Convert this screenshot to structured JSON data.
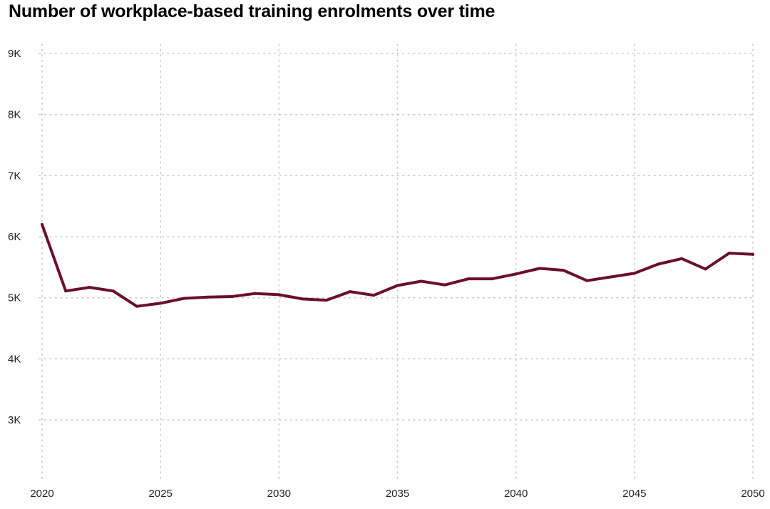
{
  "chart_data": {
    "type": "line",
    "title": "Number of workplace-based training enrolments over time",
    "xlabel": "",
    "ylabel": "",
    "x": [
      2020,
      2021,
      2022,
      2023,
      2024,
      2025,
      2026,
      2027,
      2028,
      2029,
      2030,
      2031,
      2032,
      2033,
      2034,
      2035,
      2036,
      2037,
      2038,
      2039,
      2040,
      2041,
      2042,
      2043,
      2044,
      2045,
      2046,
      2047,
      2048,
      2049,
      2050
    ],
    "series": [
      {
        "values": [
          6200,
          5110,
          5170,
          5110,
          4860,
          4910,
          4990,
          5010,
          5020,
          5070,
          5050,
          4980,
          4960,
          5100,
          5040,
          5200,
          5270,
          5210,
          5310,
          5310,
          5390,
          5480,
          5450,
          5280,
          5340,
          5400,
          5550,
          5640,
          5470,
          5730,
          5710
        ],
        "color": "#6b0f2a"
      }
    ],
    "xlim": [
      2020,
      2050
    ],
    "ylim": [
      2000,
      9300
    ],
    "x_ticks": [
      2020,
      2025,
      2030,
      2035,
      2040,
      2045,
      2050
    ],
    "x_tick_labels": [
      "2020",
      "2025",
      "2030",
      "2035",
      "2040",
      "2045",
      "2050"
    ],
    "y_ticks": [
      3000,
      4000,
      5000,
      6000,
      7000,
      8000,
      9000
    ],
    "y_tick_labels": [
      "3K",
      "4K",
      "5K",
      "6K",
      "7K",
      "8K",
      "9K"
    ],
    "grid": true,
    "grid_style": "dotted",
    "legend": "none"
  }
}
